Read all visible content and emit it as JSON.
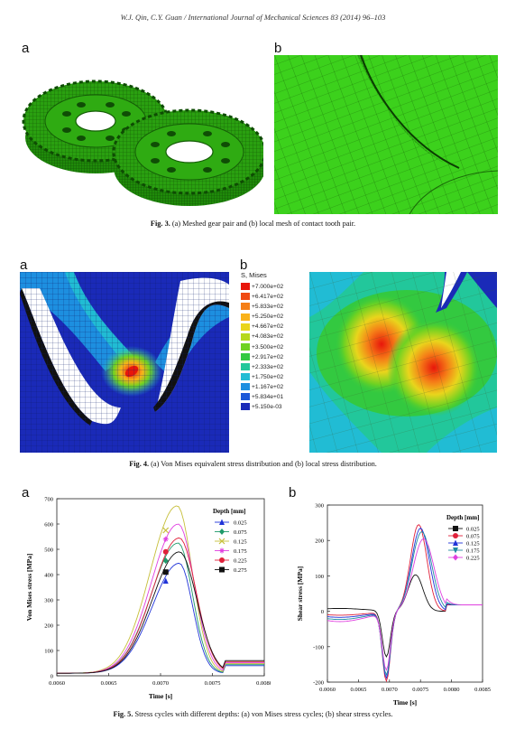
{
  "running_head": "W.J. Qin, C.Y. Guan / International Journal of Mechanical Sciences 83 (2014) 96–103",
  "fig3": {
    "label_a": "a",
    "label_b": "b",
    "caption_bold": "Fig. 3.",
    "caption_text": " (a) Meshed gear pair and (b) local mesh of contact tooth pair."
  },
  "fig4": {
    "label_a": "a",
    "label_b": "b",
    "legend_title": "S, Mises",
    "legend_values": [
      "+7.000e+02",
      "+6.417e+02",
      "+5.833e+02",
      "+5.250e+02",
      "+4.667e+02",
      "+4.083e+02",
      "+3.500e+02",
      "+2.917e+02",
      "+2.333e+02",
      "+1.750e+02",
      "+1.167e+02",
      "+5.834e+01",
      "+5.150e-03"
    ],
    "legend_colors": [
      "#e8160b",
      "#f04a12",
      "#f57f17",
      "#f9b21a",
      "#e9d51c",
      "#b6d81c",
      "#6fd222",
      "#33c940",
      "#22c79b",
      "#21bcd4",
      "#1d8fe0",
      "#1c58d8",
      "#1a2ab8"
    ],
    "caption_bold": "Fig. 4.",
    "caption_text": " (a) Von Mises equivalent stress distribution and (b) local stress distribution."
  },
  "fig5": {
    "label_a": "a",
    "label_b": "b",
    "caption_bold": "Fig. 5.",
    "caption_text": " Stress cycles with different depths: (a) von Mises stress cycles; (b) shear stress cycles."
  },
  "chart_data": [
    {
      "type": "line",
      "xlabel": "Time [s]",
      "ylabel": "Von Mises stress [MPa]",
      "xlim": [
        0.006,
        0.008
      ],
      "ylim": [
        0,
        700
      ],
      "xticks": [
        "0.0060",
        "0.0065",
        "0.0070",
        "0.0075",
        "0.0080"
      ],
      "yticks": [
        "0",
        "100",
        "200",
        "300",
        "400",
        "500",
        "600",
        "700"
      ],
      "legend_title": "Depth [mm]",
      "legend_position": "right",
      "series": [
        {
          "name": "0.025",
          "color": "#2033d8",
          "marker": "triangle-up",
          "peak_x": 0.00718,
          "peak_y": 445,
          "marker_x": 0.00705,
          "marker_y": 375
        },
        {
          "name": "0.075",
          "color": "#1f9a6a",
          "marker": "diamond",
          "peak_x": 0.00717,
          "peak_y": 525,
          "marker_x": 0.00705,
          "marker_y": 455
        },
        {
          "name": "0.125",
          "color": "#c6bf3a",
          "marker": "x",
          "peak_x": 0.00716,
          "peak_y": 672,
          "marker_x": 0.00705,
          "marker_y": 575
        },
        {
          "name": "0.175",
          "color": "#e040e0",
          "marker": "star",
          "peak_x": 0.00717,
          "peak_y": 600,
          "marker_x": 0.00705,
          "marker_y": 540
        },
        {
          "name": "0.225",
          "color": "#e0203a",
          "marker": "circle",
          "peak_x": 0.00718,
          "peak_y": 545,
          "marker_x": 0.00705,
          "marker_y": 490
        },
        {
          "name": "0.275",
          "color": "#111111",
          "marker": "square",
          "peak_x": 0.00718,
          "peak_y": 490,
          "marker_x": 0.00705,
          "marker_y": 410
        }
      ]
    },
    {
      "type": "line",
      "xlabel": "Time [s]",
      "ylabel": "Shear stress [MPa]",
      "xlim": [
        0.006,
        0.0085
      ],
      "ylim": [
        -200,
        300
      ],
      "xticks": [
        "0.0060",
        "0.0065",
        "0.0070",
        "0.0075",
        "0.0080",
        "0.0085"
      ],
      "yticks": [
        "-200",
        "-100",
        "0",
        "100",
        "200",
        "300"
      ],
      "legend_title": "Depth [mm]",
      "legend_position": "right",
      "series": [
        {
          "name": "0.025",
          "color": "#111111",
          "marker": "square",
          "min_x": 0.00695,
          "min_y": -130,
          "max_x": 0.00742,
          "max_y": 103
        },
        {
          "name": "0.075",
          "color": "#e0203a",
          "marker": "circle",
          "min_x": 0.00695,
          "min_y": -195,
          "max_x": 0.00747,
          "max_y": 245
        },
        {
          "name": "0.125",
          "color": "#2033d8",
          "marker": "triangle-up",
          "min_x": 0.00695,
          "min_y": -185,
          "max_x": 0.0075,
          "max_y": 235
        },
        {
          "name": "0.175",
          "color": "#1f8aa0",
          "marker": "triangle-down",
          "min_x": 0.00695,
          "min_y": -175,
          "max_x": 0.00752,
          "max_y": 225
        },
        {
          "name": "0.225",
          "color": "#e040e0",
          "marker": "diamond",
          "min_x": 0.00695,
          "min_y": -160,
          "max_x": 0.00755,
          "max_y": 205
        }
      ]
    }
  ]
}
